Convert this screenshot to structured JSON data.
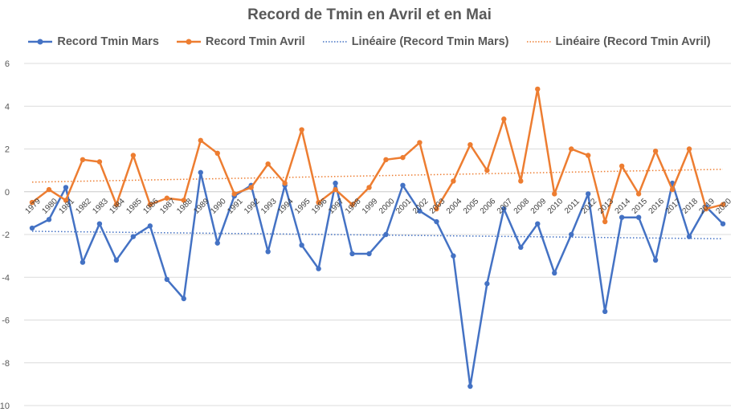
{
  "chart_data": {
    "type": "line",
    "title": "Record de Tmin en Avril et en Mai",
    "xlabel": "",
    "ylabel": "",
    "ylim": [
      -10,
      6
    ],
    "yticks": [
      "6",
      "4",
      "2",
      "0",
      "-2",
      "-4",
      "-6",
      "-8",
      "-10"
    ],
    "grid": true,
    "legend_position": "top",
    "x": [
      "1979",
      "1980",
      "1981",
      "1982",
      "1983",
      "1984",
      "1985",
      "1986",
      "1987",
      "1988",
      "1989",
      "1990",
      "1991",
      "1992",
      "1993",
      "1994",
      "1995",
      "1996",
      "1997",
      "1998",
      "1999",
      "2000",
      "2001",
      "2002",
      "2003",
      "2004",
      "2005",
      "2006",
      "2007",
      "2008",
      "2009",
      "2010",
      "2011",
      "2012",
      "2013",
      "2014",
      "2015",
      "2016",
      "2017",
      "2018",
      "2019",
      "2020"
    ],
    "series": [
      {
        "name": "Record Tmin Mars",
        "color": "#4472C4",
        "values": [
          -1.7,
          -1.3,
          0.2,
          -3.3,
          -1.5,
          -3.2,
          -2.1,
          -1.6,
          -4.1,
          -5.0,
          0.9,
          -2.4,
          -0.2,
          0.3,
          -2.8,
          0.3,
          -2.5,
          -3.6,
          0.4,
          -2.9,
          -2.9,
          -2.0,
          0.3,
          -0.9,
          -1.4,
          -3.0,
          -9.1,
          -4.3,
          -0.8,
          -2.6,
          -1.5,
          -3.8,
          -2.0,
          -0.1,
          -5.6,
          -1.2,
          -1.2,
          -3.2,
          0.4,
          -2.1,
          -0.7,
          -1.5
        ]
      },
      {
        "name": "Record Tmin Avril",
        "color": "#ED7D31",
        "values": [
          -0.5,
          0.1,
          -0.4,
          1.5,
          1.4,
          -0.6,
          1.7,
          -0.6,
          -0.3,
          -0.4,
          2.4,
          1.8,
          -0.1,
          0.2,
          1.3,
          0.4,
          2.9,
          -0.5,
          0.1,
          -0.6,
          0.2,
          1.5,
          1.6,
          2.3,
          -0.8,
          0.5,
          2.2,
          1.0,
          3.4,
          0.5,
          4.8,
          -0.1,
          2.0,
          1.7,
          -1.4,
          1.2,
          -0.1,
          1.9,
          0.1,
          2.0,
          -0.8,
          -0.6
        ]
      }
    ],
    "trendlines": [
      {
        "name": "Linéaire (Record Tmin Mars)",
        "color": "#4472C4",
        "start": -1.85,
        "end": -2.2
      },
      {
        "name": "Linéaire (Record Tmin Avril)",
        "color": "#ED7D31",
        "start": 0.45,
        "end": 1.05
      }
    ]
  }
}
